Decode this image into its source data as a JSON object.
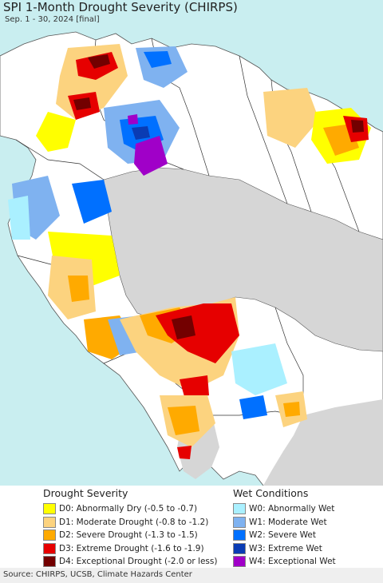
{
  "title": "SPI 1-Month Drought Severity (CHIRPS)",
  "subtitle": "Sep. 1 - 30, 2024 [final]",
  "colors": {
    "ocean": "#c9eef0",
    "land": "#ffffff",
    "outside": "#d6d6d6",
    "border": "#333333",
    "d0": "#ffff00",
    "d1": "#fcd37f",
    "d2": "#ffaa00",
    "d3": "#e60000",
    "d4": "#730000",
    "w0": "#aaf0ff",
    "w1": "#7fb2f0",
    "w2": "#0070ff",
    "w3": "#0a3cb4",
    "w4": "#a000c8"
  },
  "legend": {
    "drought_heading": "Drought Severity",
    "wet_heading": "Wet Conditions",
    "drought": [
      {
        "label": "D0: Abnormally Dry (-0.5 to -0.7)",
        "color": "#ffff00"
      },
      {
        "label": "D1: Moderate Drought (-0.8 to -1.2)",
        "color": "#fcd37f"
      },
      {
        "label": "D2: Severe Drought (-1.3 to -1.5)",
        "color": "#ffaa00"
      },
      {
        "label": "D3: Extreme Drought (-1.6 to -1.9)",
        "color": "#e60000"
      },
      {
        "label": "D4: Exceptional Drought (-2.0 or less)",
        "color": "#730000"
      }
    ],
    "wet": [
      {
        "label": "W0: Abnormally Wet",
        "color": "#aaf0ff"
      },
      {
        "label": "W1: Moderate Wet",
        "color": "#7fb2f0"
      },
      {
        "label": "W2: Severe Wet",
        "color": "#0070ff"
      },
      {
        "label": "W3: Extreme Wet",
        "color": "#0a3cb4"
      },
      {
        "label": "W4: Exceptional Wet",
        "color": "#a000c8"
      }
    ]
  },
  "source": "Source: CHIRPS, UCSB, Climate Hazards Center"
}
